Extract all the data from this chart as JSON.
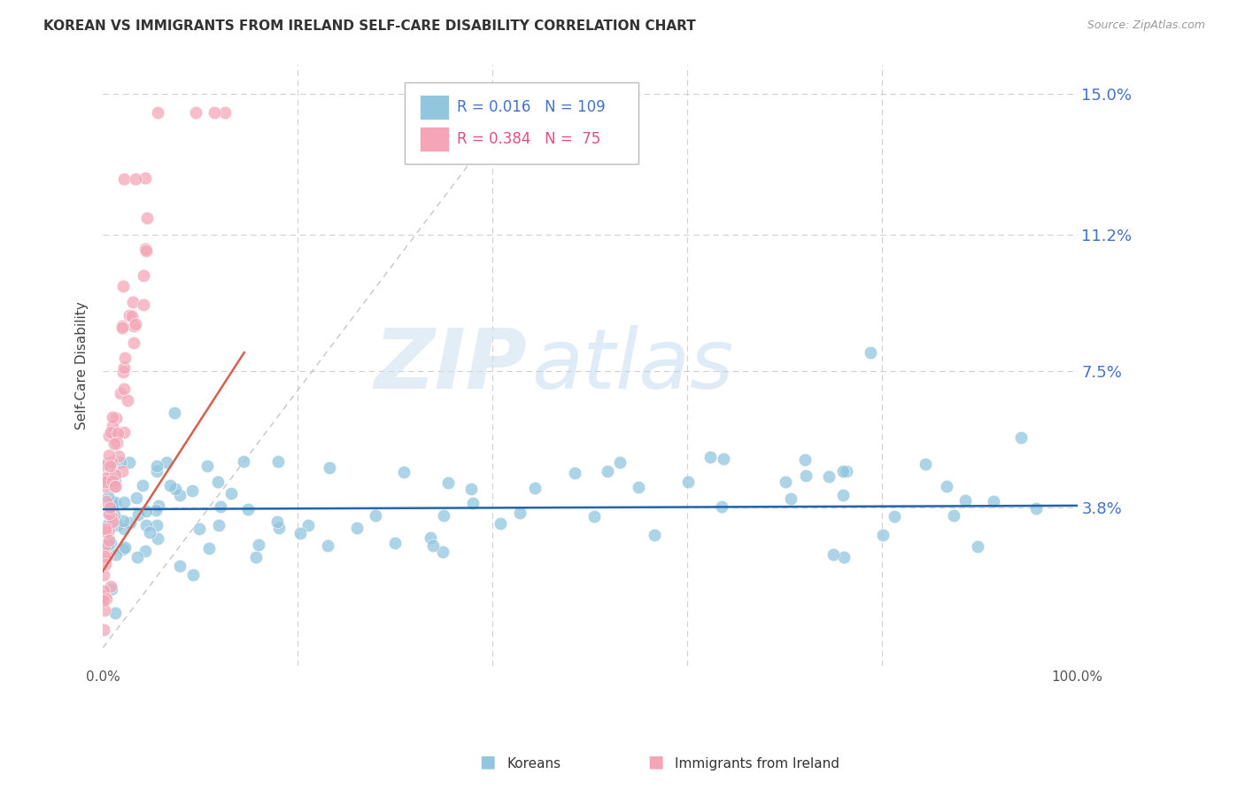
{
  "title": "KOREAN VS IMMIGRANTS FROM IRELAND SELF-CARE DISABILITY CORRELATION CHART",
  "source": "Source: ZipAtlas.com",
  "ylabel": "Self-Care Disability",
  "xlim": [
    0.0,
    1.0
  ],
  "ylim": [
    -0.005,
    0.158
  ],
  "ytick_vals": [
    0.038,
    0.075,
    0.112,
    0.15
  ],
  "ytick_labels": [
    "3.8%",
    "7.5%",
    "11.2%",
    "15.0%"
  ],
  "legend_blue_R": "0.016",
  "legend_blue_N": "109",
  "legend_pink_R": "0.384",
  "legend_pink_N": " 75",
  "blue_color": "#92c5de",
  "pink_color": "#f4a6b8",
  "blue_line_color": "#2166ac",
  "pink_line_color": "#d6604d",
  "grid_color": "#d0d0d0",
  "background_color": "#ffffff",
  "watermark_zip": "ZIP",
  "watermark_atlas": "atlas",
  "title_color": "#333333",
  "source_color": "#999999",
  "right_axis_color": "#4472c4",
  "bottom_legend_blue_color": "#92c5de",
  "bottom_legend_pink_color": "#f4a6b8"
}
